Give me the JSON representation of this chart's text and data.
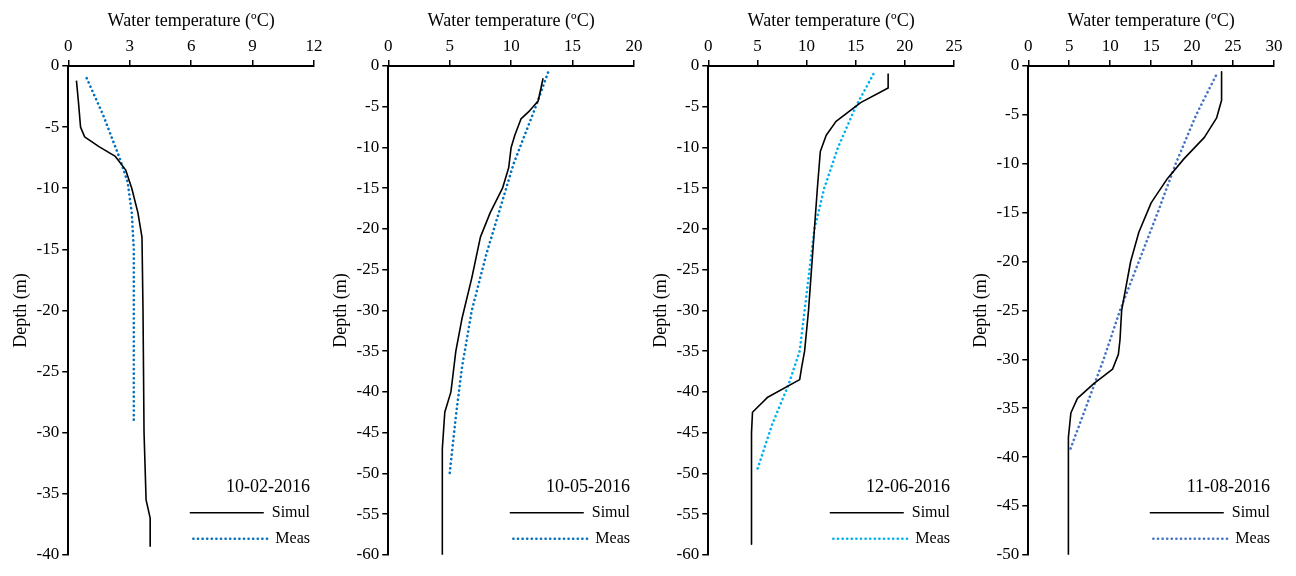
{
  "chart_data": [
    {
      "type": "line",
      "xlabel": "Water temperature (ºC)",
      "ylabel": "Depth (m)",
      "xlim": [
        0,
        12
      ],
      "xticks": [
        0,
        3,
        6,
        9,
        12
      ],
      "ylim": [
        -40,
        0
      ],
      "yticks": [
        -40,
        -35,
        -30,
        -25,
        -20,
        -15,
        -10,
        -5,
        0
      ],
      "grid": false,
      "legend": "bottom right",
      "legend_title": "10-02-2016",
      "marker": "none",
      "series": [
        {
          "name": "Simul",
          "color": "#000000",
          "line_style": "solid",
          "x": [
            0.4,
            0.5,
            0.6,
            0.8,
            1.5,
            2.3,
            2.8,
            3.1,
            3.4,
            3.6,
            3.65,
            3.7,
            3.8,
            4,
            4
          ],
          "values": [
            -1.2,
            -3,
            -5,
            -5.8,
            -6.6,
            -7.4,
            -8.5,
            -10,
            -12,
            -14,
            -20,
            -30,
            -35.5,
            -37,
            -39.3
          ]
        },
        {
          "name": "Meas",
          "color": "#0070c0",
          "line_style": "dotted",
          "x": [
            0.9,
            1.7,
            2.5,
            2.9,
            3.1,
            3.2,
            3.2
          ],
          "values": [
            -1,
            -4,
            -7.5,
            -9.5,
            -12,
            -15,
            -29
          ]
        }
      ]
    },
    {
      "type": "line",
      "xlabel": "Water temperature (ºC)",
      "ylabel": "Depth (m)",
      "xlim": [
        0,
        20
      ],
      "xticks": [
        0,
        5,
        10,
        15,
        20
      ],
      "ylim": [
        -60,
        0
      ],
      "yticks": [
        -60,
        -55,
        -50,
        -45,
        -40,
        -35,
        -30,
        -25,
        -20,
        -15,
        -10,
        -5,
        0
      ],
      "grid": false,
      "legend": "bottom right",
      "legend_title": "10-05-2016",
      "marker": "none",
      "series": [
        {
          "name": "Simul",
          "color": "#000000",
          "line_style": "solid",
          "x": [
            12.6,
            12.2,
            11.5,
            10.8,
            10.3,
            10,
            9.8,
            9.3,
            8.3,
            7.5,
            6.8,
            6,
            5.5,
            5.1,
            4.6,
            4.4,
            4.4
          ],
          "values": [
            -1.5,
            -4.3,
            -5.5,
            -6.5,
            -8.5,
            -10,
            -12.5,
            -15,
            -18,
            -21,
            -26,
            -31,
            -35,
            -40,
            -42.5,
            -47,
            -60
          ]
        },
        {
          "name": "Meas",
          "color": "#0070c0",
          "line_style": "dotted",
          "x": [
            13,
            12,
            10.2,
            9,
            8,
            6.8,
            6,
            5.5,
            5
          ],
          "values": [
            -0.8,
            -5,
            -12,
            -18,
            -23,
            -30,
            -37,
            -43,
            -50
          ]
        }
      ]
    },
    {
      "type": "line",
      "xlabel": "Water temperature (ºC)",
      "ylabel": "Depth (m)",
      "xlim": [
        0,
        25
      ],
      "xticks": [
        0,
        5,
        10,
        15,
        20,
        25
      ],
      "ylim": [
        -60,
        0
      ],
      "yticks": [
        -60,
        -55,
        -50,
        -45,
        -40,
        -35,
        -30,
        -25,
        -20,
        -15,
        -10,
        -5,
        0
      ],
      "grid": false,
      "legend": "bottom right",
      "legend_title": "12-06-2016",
      "marker": "none",
      "series": [
        {
          "name": "Simul",
          "color": "#000000",
          "line_style": "solid",
          "x": [
            18.3,
            18.3,
            15.5,
            13,
            12,
            11.4,
            11.1,
            10.8,
            10.5,
            10.2,
            9.8,
            9.5,
            9.3,
            6,
            4.5,
            4.4,
            4.4
          ],
          "values": [
            -1,
            -2.7,
            -4.5,
            -6.8,
            -8.5,
            -10.5,
            -15,
            -20,
            -25,
            -30,
            -35,
            -37,
            -38.5,
            -40.7,
            -42.5,
            -45,
            -58.7
          ]
        },
        {
          "name": "Meas",
          "color": "#00b0f0",
          "line_style": "dotted",
          "x": [
            16.8,
            15,
            13.2,
            11.8,
            10.8,
            10.3,
            9.8,
            9.3,
            8.2,
            6.5,
            5
          ],
          "values": [
            -1,
            -5,
            -10,
            -15,
            -20,
            -25,
            -30,
            -35,
            -39,
            -44,
            -49.5
          ]
        }
      ]
    },
    {
      "type": "line",
      "xlabel": "Water temperature (ºC)",
      "ylabel": "Depth (m)",
      "xlim": [
        0,
        30
      ],
      "xticks": [
        0,
        5,
        10,
        15,
        20,
        25,
        30
      ],
      "ylim": [
        -50,
        0
      ],
      "yticks": [
        -50,
        -45,
        -40,
        -35,
        -30,
        -25,
        -20,
        -15,
        -10,
        -5,
        0
      ],
      "grid": false,
      "legend": "bottom right",
      "legend_title": "11-08-2016",
      "marker": "none",
      "series": [
        {
          "name": "Simul",
          "color": "#000000",
          "line_style": "solid",
          "x": [
            23.6,
            23.6,
            23,
            21.5,
            19,
            17,
            15,
            13.5,
            12.5,
            11.4,
            11.2,
            11,
            10.3,
            8,
            6,
            5.2,
            4.9,
            4.9
          ],
          "values": [
            -0.6,
            -3.5,
            -5.3,
            -7.3,
            -9.5,
            -11.5,
            -14,
            -17,
            -20,
            -25,
            -28,
            -29.5,
            -31,
            -32.5,
            -34,
            -35.5,
            -38,
            -50
          ]
        },
        {
          "name": "Meas",
          "color": "#4472c4",
          "line_style": "dotted",
          "x": [
            22.9,
            20.5,
            18,
            15.8,
            13.5,
            11.2,
            9.2,
            7,
            5
          ],
          "values": [
            -1,
            -5,
            -10,
            -15,
            -20,
            -25,
            -30,
            -35,
            -39.5
          ]
        }
      ]
    }
  ]
}
